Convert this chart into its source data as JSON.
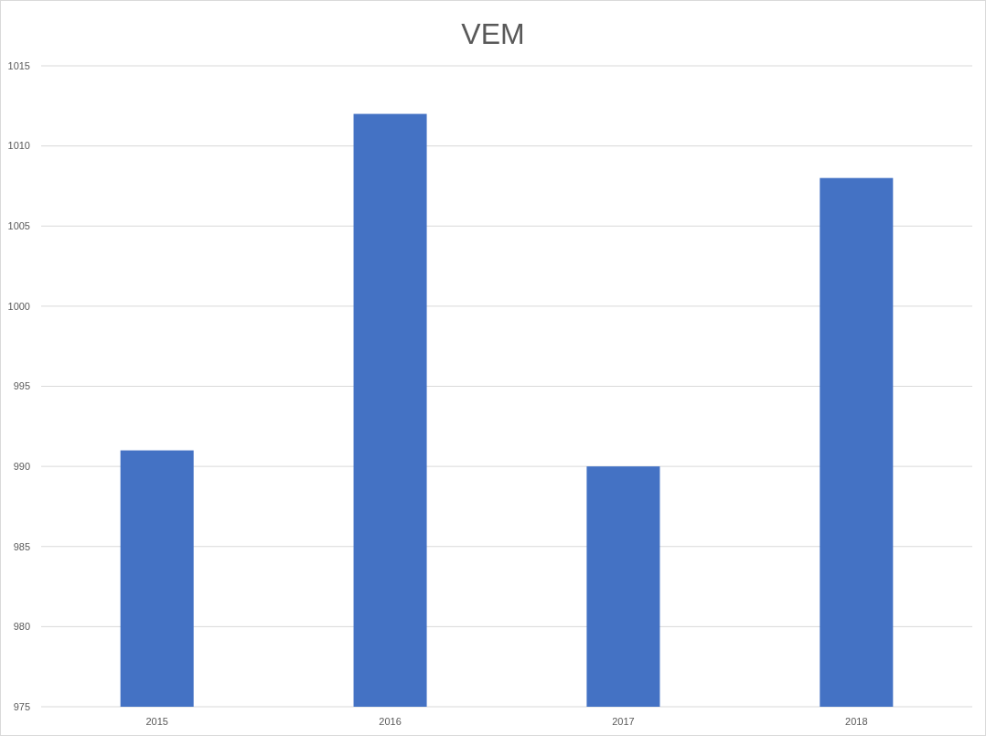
{
  "chart_data": {
    "type": "bar",
    "title": "VEM",
    "categories": [
      "2015",
      "2016",
      "2017",
      "2018"
    ],
    "values": [
      991,
      1012,
      990,
      1008
    ],
    "color": "#4472c4",
    "ylim": [
      975,
      1015
    ],
    "yticks": [
      975,
      980,
      985,
      990,
      995,
      1000,
      1005,
      1010,
      1015
    ],
    "grid": "y"
  }
}
